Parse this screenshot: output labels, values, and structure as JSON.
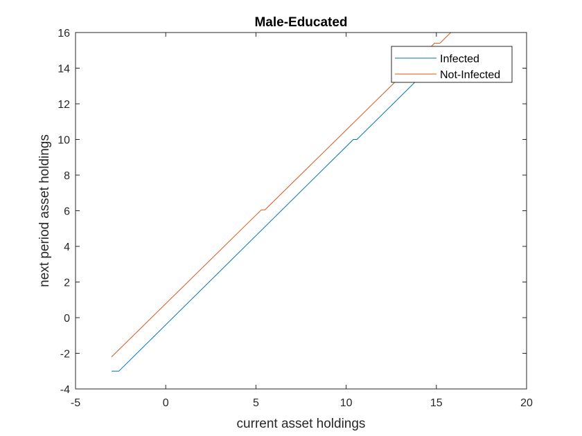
{
  "chart_data": {
    "type": "line",
    "title": "Male-Educated",
    "xlabel": "current asset holdings",
    "ylabel": "next period asset holdings",
    "xlim": [
      -5,
      20
    ],
    "ylim": [
      -4,
      16
    ],
    "xticks": [
      -5,
      0,
      5,
      10,
      15,
      20
    ],
    "xtick_labels": [
      "-5",
      "0",
      "5",
      "10",
      "15",
      "20"
    ],
    "yticks": [
      -4,
      -2,
      0,
      2,
      4,
      6,
      8,
      10,
      12,
      14,
      16
    ],
    "ytick_labels": [
      "-4",
      "-2",
      "0",
      "2",
      "4",
      "6",
      "8",
      "10",
      "12",
      "14",
      "16"
    ],
    "grid": false,
    "legend_position": "top-right",
    "series": [
      {
        "name": "Infected",
        "color": "#0072BD",
        "x": [
          -3.0,
          -2.6,
          10.4,
          10.6,
          15.0
        ],
        "y": [
          -3.0,
          -3.0,
          10.0,
          10.0,
          14.4
        ]
      },
      {
        "name": "Not-Infected",
        "color": "#D95319",
        "x": [
          -3.0,
          5.3,
          5.5,
          14.9,
          15.2,
          15.8
        ],
        "y": [
          -2.2,
          6.05,
          6.05,
          15.4,
          15.4,
          16.0
        ]
      }
    ]
  }
}
